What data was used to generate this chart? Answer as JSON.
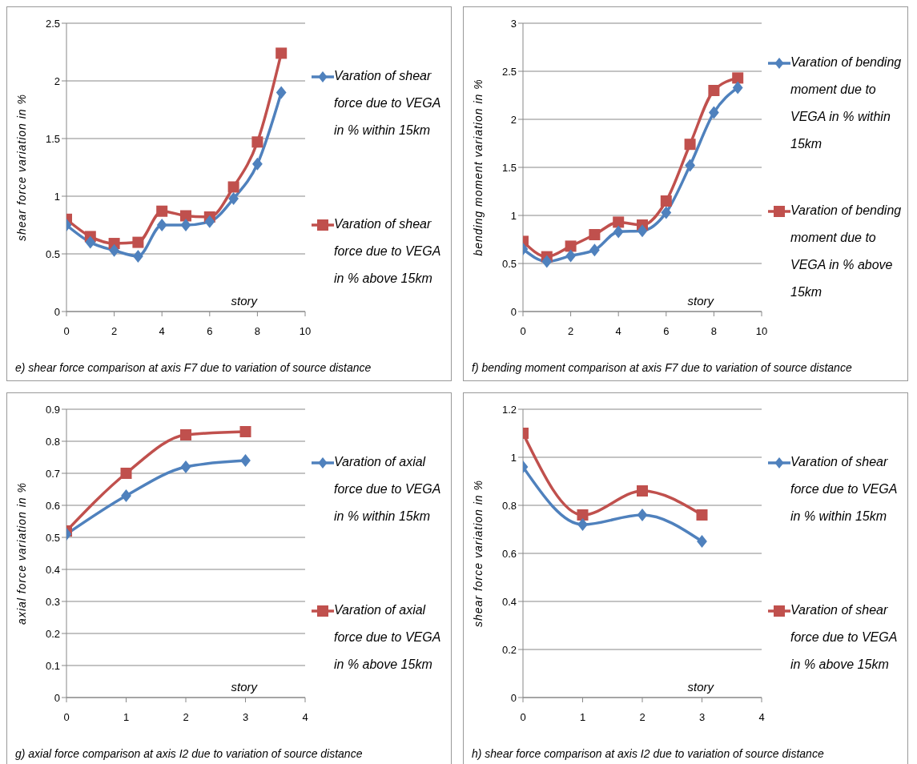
{
  "chart_data": [
    {
      "type": "line",
      "title": "e) shear force comparison  at axis F7 due  to variation of source distance",
      "xlabel": "story",
      "ylabel": "shear force variation  in %",
      "x": [
        0,
        1,
        2,
        3,
        4,
        5,
        6,
        7,
        8,
        9
      ],
      "xlim": [
        0,
        10
      ],
      "xticks": [
        0,
        2,
        4,
        6,
        8,
        10
      ],
      "ylim": [
        0,
        2.5
      ],
      "yticks": [
        0,
        0.5,
        1,
        1.5,
        2,
        2.5
      ],
      "grid": "y",
      "legend": "right",
      "line_style": "solid",
      "series": [
        {
          "name": "Varation of shear force  due to VEGA in %  within 15km",
          "color": "#4f81bd",
          "marker": "diamond",
          "values": [
            0.75,
            0.6,
            0.53,
            0.48,
            0.75,
            0.75,
            0.78,
            0.98,
            1.28,
            1.9
          ]
        },
        {
          "name": "Varation of shear force  due to VEGA in %  above 15km",
          "color": "#c0504d",
          "marker": "square",
          "values": [
            0.8,
            0.65,
            0.59,
            0.6,
            0.87,
            0.83,
            0.82,
            1.08,
            1.47,
            2.24
          ]
        }
      ]
    },
    {
      "type": "line",
      "title": "f) bending moment comparison  at axis F7 due  to variation of source distance",
      "xlabel": "story",
      "ylabel": "bending moment variation  in %",
      "x": [
        0,
        1,
        2,
        3,
        4,
        5,
        6,
        7,
        8,
        9
      ],
      "xlim": [
        0,
        10
      ],
      "xticks": [
        0,
        2,
        4,
        6,
        8,
        10
      ],
      "ylim": [
        0,
        3
      ],
      "yticks": [
        0,
        0.5,
        1,
        1.5,
        2,
        2.5,
        3
      ],
      "grid": "y",
      "legend": "right",
      "line_style": "solid",
      "series": [
        {
          "name": "Varation of bending moment  due to VEGA in % within 15km",
          "color": "#4f81bd",
          "marker": "diamond",
          "values": [
            0.65,
            0.52,
            0.58,
            0.64,
            0.83,
            0.84,
            1.03,
            1.52,
            2.07,
            2.33
          ]
        },
        {
          "name": "Varation of bending moment  due to VEGA in % above 15km",
          "color": "#c0504d",
          "marker": "square",
          "values": [
            0.73,
            0.57,
            0.68,
            0.8,
            0.93,
            0.9,
            1.15,
            1.74,
            2.3,
            2.43
          ]
        }
      ]
    },
    {
      "type": "line",
      "title": "g) axial force comparison  at axis I2 due  to variation of source distance",
      "xlabel": "story",
      "ylabel": "axial force variation   in %",
      "x": [
        0,
        1,
        2,
        3
      ],
      "xlim": [
        0,
        4
      ],
      "xticks": [
        0,
        1,
        2,
        3,
        4
      ],
      "ylim": [
        0,
        0.9
      ],
      "yticks": [
        0,
        0.1,
        0.2,
        0.3,
        0.4,
        0.5,
        0.6,
        0.7,
        0.8,
        0.9
      ],
      "grid": "y",
      "legend": "right",
      "line_style": "solid",
      "series": [
        {
          "name": "Varation of axial force  due to VEGA in %  within 15km",
          "color": "#4f81bd",
          "marker": "diamond",
          "values": [
            0.51,
            0.63,
            0.72,
            0.74
          ]
        },
        {
          "name": "Varation of axial force  due to VEGA in % above 15km",
          "color": "#c0504d",
          "marker": "square",
          "values": [
            0.52,
            0.7,
            0.82,
            0.83
          ]
        }
      ]
    },
    {
      "type": "line",
      "title": "h) shear force comparison  at axis I2 due  to variation of source distance",
      "xlabel": "story",
      "ylabel": "shear force variation  in %",
      "x": [
        0,
        1,
        2,
        3
      ],
      "xlim": [
        0,
        4
      ],
      "xticks": [
        0,
        1,
        2,
        3,
        4
      ],
      "ylim": [
        0,
        1.2
      ],
      "yticks": [
        0,
        0.2,
        0.4,
        0.6,
        0.8,
        1,
        1.2
      ],
      "grid": "y",
      "legend": "right",
      "line_style": "solid",
      "series": [
        {
          "name": "Varation of shear force  due to VEGA in %  within 15km",
          "color": "#4f81bd",
          "marker": "diamond",
          "values": [
            0.96,
            0.72,
            0.76,
            0.65
          ]
        },
        {
          "name": "Varation of shear force  due to VEGA in %  above 15km",
          "color": "#c0504d",
          "marker": "square",
          "values": [
            1.1,
            0.76,
            0.86,
            0.76
          ]
        }
      ]
    }
  ]
}
